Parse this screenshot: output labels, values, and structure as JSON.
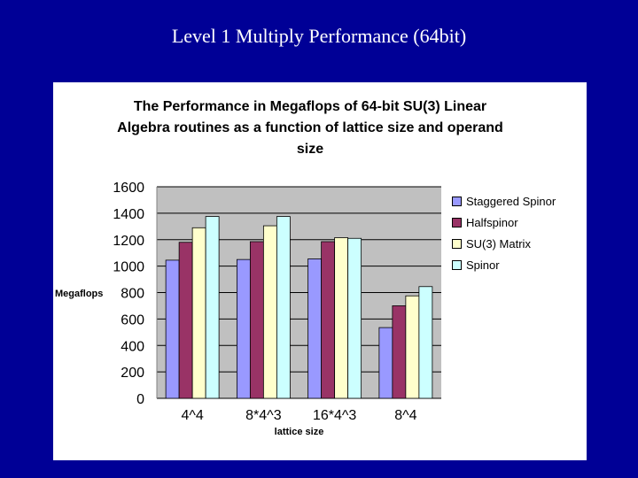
{
  "slide": {
    "title": "Level 1 Multiply Performance (64bit)"
  },
  "chart_data": {
    "type": "bar",
    "title_lines": [
      "The Performance in Megaflops of 64-bit SU(3) Linear",
      "Algebra routines as a function of lattice size and operand",
      "size"
    ],
    "xlabel": "lattice size",
    "ylabel": "Megaflops",
    "categories": [
      "4^4",
      "8*4^3",
      "16*4^3",
      "8^4"
    ],
    "ylim": [
      0,
      1600
    ],
    "yticks": [
      0,
      200,
      400,
      600,
      800,
      1000,
      1200,
      1400,
      1600
    ],
    "grid": true,
    "legend_position": "right",
    "plot_background": "#c0c0c0",
    "series": [
      {
        "name": "Staggered Spinor",
        "color": "#9999ff",
        "values": [
          1045,
          1050,
          1055,
          535
        ]
      },
      {
        "name": "Halfspinor",
        "color": "#993366",
        "values": [
          1180,
          1185,
          1185,
          700
        ]
      },
      {
        "name": "SU(3) Matrix",
        "color": "#ffffcc",
        "values": [
          1290,
          1305,
          1215,
          775
        ]
      },
      {
        "name": "Spinor",
        "color": "#ccffff",
        "values": [
          1375,
          1375,
          1210,
          845
        ]
      }
    ]
  }
}
